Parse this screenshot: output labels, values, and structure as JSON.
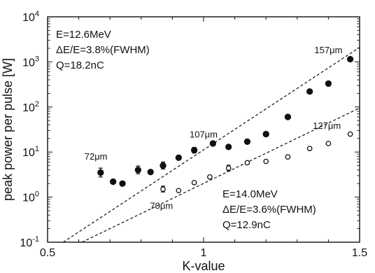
{
  "chart_data": {
    "type": "scatter",
    "xlabel": "K-value",
    "ylabel": "peak power per pulse [W]",
    "xlim": [
      0.5,
      1.5
    ],
    "ylim": [
      0.1,
      10000
    ],
    "y_scale": "log",
    "x_ticks": [
      {
        "value": 0.5,
        "label": "0.5"
      },
      {
        "value": 1.0,
        "label": "1"
      },
      {
        "value": 1.5,
        "label": "1.5"
      }
    ],
    "y_ticks": [
      {
        "value": 0.1,
        "base": "10",
        "exp": "-1"
      },
      {
        "value": 1,
        "base": "10",
        "exp": "0"
      },
      {
        "value": 10,
        "base": "10",
        "exp": "1"
      },
      {
        "value": 100,
        "base": "10",
        "exp": "2"
      },
      {
        "value": 1000,
        "base": "10",
        "exp": "3"
      },
      {
        "value": 10000,
        "base": "10",
        "exp": "4"
      }
    ],
    "series": [
      {
        "marker": "filled-circle",
        "x": [
          0.67,
          0.71,
          0.74,
          0.79,
          0.83,
          0.87,
          0.92,
          0.97,
          1.03,
          1.08,
          1.14,
          1.2,
          1.27,
          1.34,
          1.4,
          1.47
        ],
        "y": [
          3.5,
          2.2,
          2.0,
          4.0,
          3.6,
          5.0,
          7.5,
          11.0,
          15.5,
          13.0,
          17.0,
          25.0,
          60.0,
          220.0,
          330.0,
          1150.0
        ]
      },
      {
        "marker": "open-circle",
        "x": [
          0.87,
          0.92,
          0.97,
          1.02,
          1.08,
          1.14,
          1.2,
          1.27,
          1.34,
          1.4,
          1.47
        ],
        "y": [
          1.5,
          1.4,
          2.1,
          2.8,
          4.4,
          5.8,
          6.2,
          7.8,
          12.0,
          15.5,
          25.0
        ]
      }
    ],
    "error_bars": [
      {
        "x": 0.67,
        "y": 3.5,
        "low": 2.8,
        "high": 4.4
      },
      {
        "x": 0.79,
        "y": 4.0,
        "low": 3.3,
        "high": 4.9
      },
      {
        "x": 0.87,
        "y": 5.0,
        "low": 4.2,
        "high": 6.0
      },
      {
        "x": 0.97,
        "y": 11.0,
        "low": 9.5,
        "high": 12.7
      },
      {
        "x": 0.87,
        "y": 1.5,
        "low": 1.3,
        "high": 1.75
      },
      {
        "x": 1.08,
        "y": 4.4,
        "low": 3.8,
        "high": 5.1
      }
    ],
    "fit_lines": [
      {
        "style": "dashed",
        "x": [
          0.55,
          1.5
        ],
        "y": [
          0.1,
          2100
        ]
      },
      {
        "style": "dashed",
        "x": [
          0.61,
          1.5
        ],
        "y": [
          0.1,
          95
        ]
      }
    ],
    "annotations": [
      {
        "text": "72μm",
        "x": 0.655,
        "y": 6.8
      },
      {
        "text": "107μm",
        "x": 1.0,
        "y": 21
      },
      {
        "text": "157μm",
        "x": 1.4,
        "y": 1550
      },
      {
        "text": "70μm",
        "x": 0.865,
        "y": 0.55
      },
      {
        "text": "127μm",
        "x": 1.395,
        "y": 33
      }
    ],
    "text_blocks": [
      {
        "lines": [
          "E=12.6MeV",
          "ΔE/E=3.8%(FWHM)",
          "Q=18.2nC"
        ],
        "placement": "top-left"
      },
      {
        "lines": [
          "E=14.0MeV",
          "ΔE/E=3.6%(FWHM)",
          "Q=12.9nC"
        ],
        "placement": "bottom-right"
      }
    ]
  }
}
